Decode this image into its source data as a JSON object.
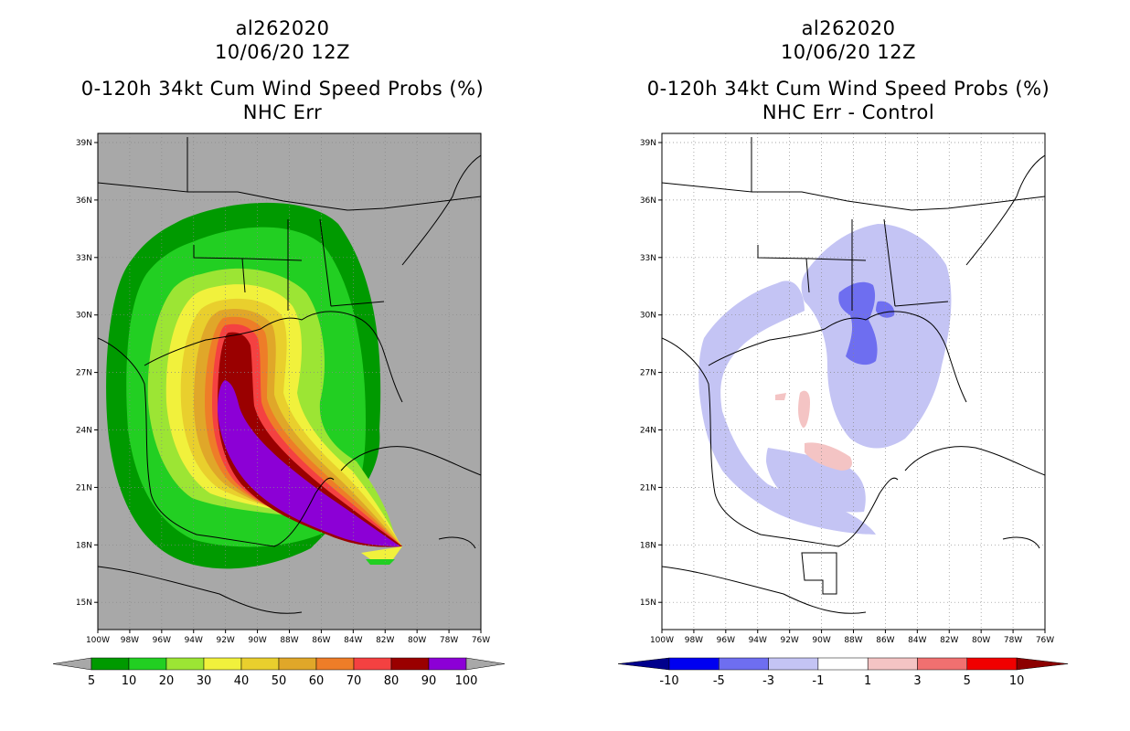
{
  "left_panel": {
    "storm_id": "al262020",
    "datetime": "10/06/20 12Z",
    "product": "0-120h 34kt Cum Wind Speed Probs (%)",
    "subtitle": "NHC Err",
    "colorbar": {
      "labels": [
        "5",
        "10",
        "20",
        "30",
        "40",
        "50",
        "60",
        "70",
        "80",
        "90",
        "100"
      ],
      "colors": [
        "#009a00",
        "#22cf22",
        "#9ce534",
        "#f1f13c",
        "#e9cf2d",
        "#e0a729",
        "#ee7d28",
        "#f44141",
        "#9a0000",
        "#8c00d6"
      ]
    }
  },
  "right_panel": {
    "storm_id": "al262020",
    "datetime": "10/06/20 12Z",
    "product": "0-120h 34kt Cum Wind Speed Probs (%)",
    "subtitle": "NHC Err - Control",
    "colorbar": {
      "labels": [
        "-10",
        "-5",
        "-3",
        "-1",
        "1",
        "3",
        "5",
        "10"
      ],
      "colors": [
        "#00008c",
        "#0000f0",
        "#6e6ef0",
        "#c4c4f4",
        "#ffffff",
        "#f4c4c4",
        "#f07070",
        "#f00000",
        "#8c0000"
      ]
    }
  },
  "axes": {
    "lat_labels": [
      "39N",
      "36N",
      "33N",
      "30N",
      "27N",
      "24N",
      "21N",
      "18N",
      "15N"
    ],
    "lon_labels": [
      "100W",
      "98W",
      "96W",
      "94W",
      "92W",
      "90W",
      "88W",
      "86W",
      "84W",
      "82W",
      "80W",
      "78W",
      "76W"
    ]
  }
}
